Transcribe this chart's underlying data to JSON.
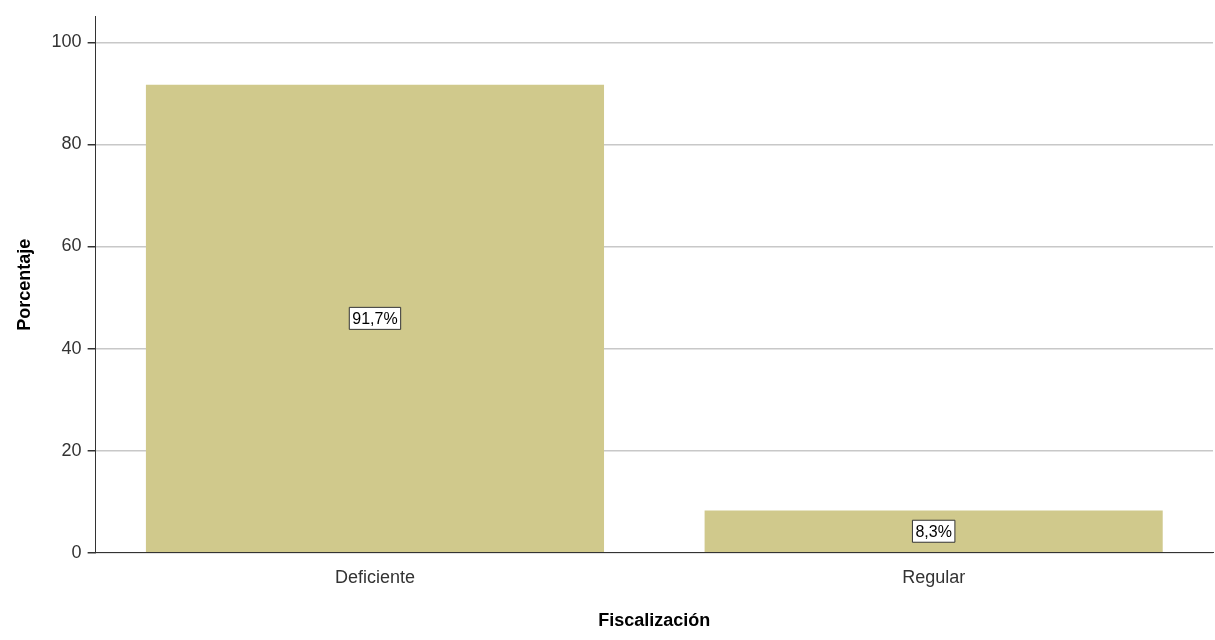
{
  "chart_data": {
    "type": "bar",
    "xlabel": "Fiscalización",
    "ylabel": "Porcentaje",
    "categories": [
      "Deficiente",
      "Regular"
    ],
    "values": [
      91.7,
      8.3
    ],
    "color": "#d0c98c",
    "value_labels": [
      "91,7%",
      "8,3%"
    ],
    "ylim": [
      0,
      105
    ],
    "yticks": [
      0,
      20,
      40,
      60,
      80,
      100
    ],
    "grid": "y"
  }
}
